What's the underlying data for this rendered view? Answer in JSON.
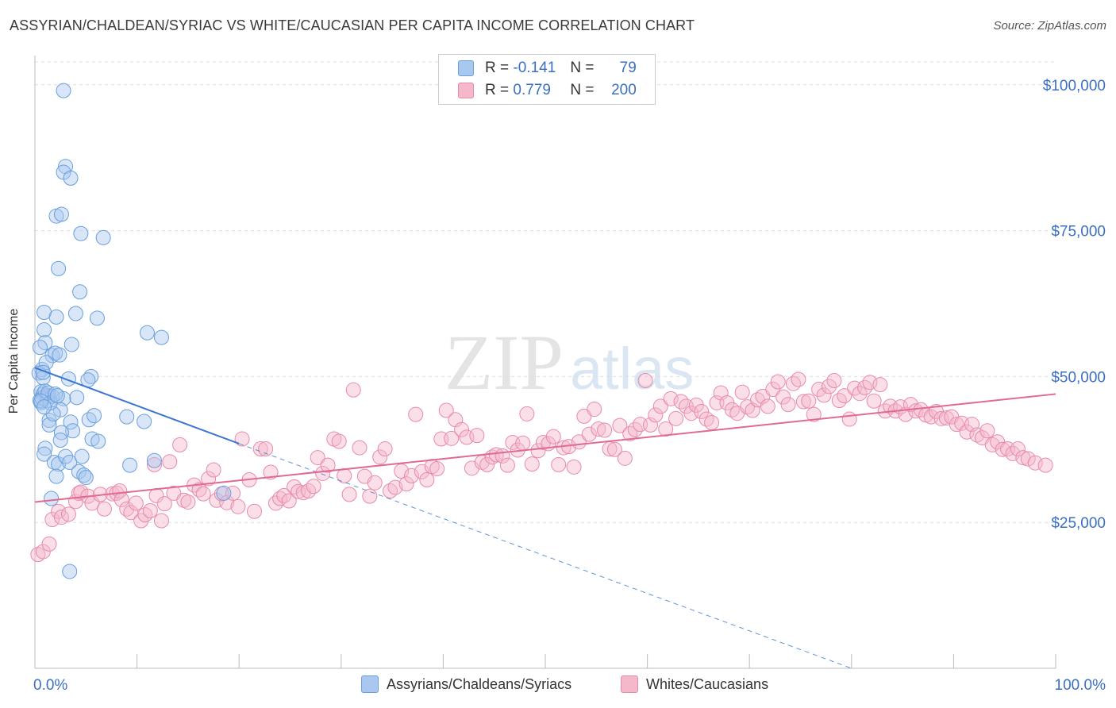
{
  "title": "ASSYRIAN/CHALDEAN/SYRIAC VS WHITE/CAUCASIAN PER CAPITA INCOME CORRELATION CHART",
  "source": "Source: ZipAtlas.com",
  "watermark": {
    "zip": "ZIP",
    "atlas": "atlas"
  },
  "legend": {
    "r_label": "R =",
    "n_label": "N =",
    "series1": {
      "r": "-0.141",
      "n": "79"
    },
    "series2": {
      "r": "0.779",
      "n": "200"
    }
  },
  "colors": {
    "blue_fill": "#a8c8f0",
    "blue_stroke": "#6a9fdc",
    "blue_line": "#3a76d0",
    "pink_fill": "#f5b8cb",
    "pink_stroke": "#e88aa8",
    "pink_line": "#e06a94",
    "grid": "#dddddd",
    "axis_text": "#3a6fc4"
  },
  "chart_data": {
    "type": "scatter",
    "title": "ASSYRIAN/CHALDEAN/SYRIAC VS WHITE/CAUCASIAN PER CAPITA INCOME CORRELATION CHART",
    "xlabel": "",
    "ylabel": "Per Capita Income",
    "xlim": [
      0,
      100
    ],
    "ylim": [
      0,
      105000
    ],
    "x_tick_labels": [
      "0.0%",
      "100.0%"
    ],
    "y_ticks": [
      25000,
      50000,
      75000,
      100000
    ],
    "y_tick_labels": [
      "$25,000",
      "$50,000",
      "$75,000",
      "$100,000"
    ],
    "series": [
      {
        "name": "Assyrians/Chaldeans/Syriacs",
        "trend": {
          "x": [
            0,
            20
          ],
          "y": [
            51500,
            38500
          ],
          "dashed_to": [
            80,
            0
          ]
        },
        "points": [
          [
            2.8,
            99000
          ],
          [
            3.0,
            86000
          ],
          [
            2.8,
            85000
          ],
          [
            3.5,
            84000
          ],
          [
            2.1,
            77500
          ],
          [
            2.6,
            77800
          ],
          [
            4.5,
            74500
          ],
          [
            6.7,
            73800
          ],
          [
            2.3,
            68500
          ],
          [
            4.4,
            64500
          ],
          [
            0.9,
            61000
          ],
          [
            4.0,
            60800
          ],
          [
            2.1,
            60200
          ],
          [
            6.1,
            60000
          ],
          [
            0.9,
            58000
          ],
          [
            1.0,
            55800
          ],
          [
            12.4,
            56700
          ],
          [
            11.0,
            57500
          ],
          [
            3.6,
            55500
          ],
          [
            0.5,
            55000
          ],
          [
            1.7,
            53600
          ],
          [
            2.0,
            54000
          ],
          [
            2.4,
            53700
          ],
          [
            0.7,
            51200
          ],
          [
            0.4,
            50600
          ],
          [
            0.8,
            49800
          ],
          [
            3.3,
            49600
          ],
          [
            5.5,
            50000
          ],
          [
            5.2,
            49400
          ],
          [
            0.6,
            47400
          ],
          [
            0.8,
            47000
          ],
          [
            1.2,
            46800
          ],
          [
            1.3,
            46600
          ],
          [
            1.7,
            46600
          ],
          [
            4.1,
            46400
          ],
          [
            2.8,
            46200
          ],
          [
            0.5,
            45900
          ],
          [
            0.6,
            45500
          ],
          [
            1.2,
            45900
          ],
          [
            2.5,
            44300
          ],
          [
            1.4,
            42500
          ],
          [
            1.4,
            41700
          ],
          [
            3.5,
            42200
          ],
          [
            5.3,
            42600
          ],
          [
            5.8,
            43300
          ],
          [
            9.0,
            43100
          ],
          [
            10.7,
            42300
          ],
          [
            5.6,
            39300
          ],
          [
            3.7,
            40700
          ],
          [
            2.6,
            40400
          ],
          [
            6.2,
            38900
          ],
          [
            2.5,
            39100
          ],
          [
            1.0,
            37700
          ],
          [
            0.9,
            36700
          ],
          [
            1.9,
            35300
          ],
          [
            2.3,
            35000
          ],
          [
            3.0,
            36300
          ],
          [
            3.4,
            35300
          ],
          [
            4.6,
            36300
          ],
          [
            9.3,
            34800
          ],
          [
            11.7,
            35600
          ],
          [
            4.3,
            33700
          ],
          [
            4.8,
            33100
          ],
          [
            2.1,
            32900
          ],
          [
            5.0,
            32700
          ],
          [
            1.6,
            29100
          ],
          [
            18.5,
            30000
          ],
          [
            3.4,
            16600
          ],
          [
            1.8,
            43600
          ],
          [
            0.7,
            46300
          ],
          [
            1.0,
            47500
          ],
          [
            1.3,
            47200
          ],
          [
            1.5,
            45500
          ],
          [
            2.0,
            47000
          ],
          [
            2.2,
            46700
          ],
          [
            0.6,
            45800
          ],
          [
            0.9,
            44800
          ],
          [
            1.1,
            52400
          ],
          [
            0.8,
            50700
          ]
        ]
      },
      {
        "name": "Whites/Caucasians",
        "trend": {
          "x": [
            0,
            100
          ],
          "y": [
            28500,
            47000
          ]
        },
        "points": [
          [
            0.3,
            19500
          ],
          [
            0.8,
            20000
          ],
          [
            1.4,
            21300
          ],
          [
            1.7,
            25500
          ],
          [
            2.3,
            26900
          ],
          [
            2.6,
            25900
          ],
          [
            3.3,
            26400
          ],
          [
            4.0,
            28600
          ],
          [
            4.3,
            30000
          ],
          [
            4.5,
            30200
          ],
          [
            5.2,
            29500
          ],
          [
            5.6,
            28300
          ],
          [
            6.4,
            29800
          ],
          [
            6.8,
            27300
          ],
          [
            7.6,
            29900
          ],
          [
            8.0,
            30000
          ],
          [
            8.3,
            30400
          ],
          [
            8.5,
            28900
          ],
          [
            9.0,
            27300
          ],
          [
            9.4,
            26700
          ],
          [
            9.9,
            28300
          ],
          [
            10.4,
            25300
          ],
          [
            10.8,
            26300
          ],
          [
            11.3,
            27000
          ],
          [
            11.7,
            34900
          ],
          [
            11.9,
            29600
          ],
          [
            12.4,
            25300
          ],
          [
            12.7,
            28200
          ],
          [
            13.2,
            35400
          ],
          [
            13.6,
            30000
          ],
          [
            14.2,
            38300
          ],
          [
            14.6,
            28800
          ],
          [
            15.0,
            28500
          ],
          [
            15.6,
            31400
          ],
          [
            16.1,
            30600
          ],
          [
            16.5,
            29900
          ],
          [
            17.0,
            32500
          ],
          [
            17.5,
            34000
          ],
          [
            17.8,
            28800
          ],
          [
            18.3,
            29900
          ],
          [
            18.8,
            28400
          ],
          [
            19.4,
            30000
          ],
          [
            19.9,
            27700
          ],
          [
            20.3,
            39300
          ],
          [
            21.0,
            32300
          ],
          [
            21.5,
            26900
          ],
          [
            22.1,
            37600
          ],
          [
            22.6,
            37600
          ],
          [
            23.1,
            33600
          ],
          [
            23.6,
            28300
          ],
          [
            24.0,
            29100
          ],
          [
            24.4,
            29600
          ],
          [
            24.9,
            28700
          ],
          [
            25.4,
            31100
          ],
          [
            25.8,
            30300
          ],
          [
            26.3,
            30100
          ],
          [
            26.8,
            30400
          ],
          [
            27.3,
            31200
          ],
          [
            27.7,
            36100
          ],
          [
            28.2,
            33400
          ],
          [
            28.7,
            34800
          ],
          [
            29.3,
            39300
          ],
          [
            29.8,
            38900
          ],
          [
            30.3,
            33000
          ],
          [
            30.8,
            29800
          ],
          [
            31.2,
            47700
          ],
          [
            31.8,
            37800
          ],
          [
            32.3,
            32900
          ],
          [
            32.8,
            29500
          ],
          [
            33.3,
            31800
          ],
          [
            33.8,
            36200
          ],
          [
            34.3,
            37600
          ],
          [
            34.8,
            30400
          ],
          [
            35.3,
            31000
          ],
          [
            35.9,
            33800
          ],
          [
            36.4,
            31600
          ],
          [
            36.9,
            33000
          ],
          [
            37.3,
            43500
          ],
          [
            37.9,
            33700
          ],
          [
            38.4,
            32300
          ],
          [
            38.9,
            34600
          ],
          [
            39.4,
            34200
          ],
          [
            39.8,
            39300
          ],
          [
            40.3,
            44200
          ],
          [
            40.8,
            39400
          ],
          [
            41.2,
            42600
          ],
          [
            41.8,
            40900
          ],
          [
            42.3,
            39600
          ],
          [
            42.8,
            34300
          ],
          [
            43.3,
            39900
          ],
          [
            43.8,
            35300
          ],
          [
            44.3,
            34900
          ],
          [
            44.8,
            36200
          ],
          [
            45.2,
            36600
          ],
          [
            45.8,
            36400
          ],
          [
            46.3,
            34800
          ],
          [
            46.8,
            38700
          ],
          [
            47.3,
            37400
          ],
          [
            47.8,
            38600
          ],
          [
            48.2,
            43600
          ],
          [
            48.7,
            35000
          ],
          [
            49.3,
            37300
          ],
          [
            49.8,
            38700
          ],
          [
            50.3,
            38500
          ],
          [
            50.8,
            39700
          ],
          [
            51.3,
            34900
          ],
          [
            51.8,
            37800
          ],
          [
            52.3,
            38000
          ],
          [
            52.8,
            34500
          ],
          [
            53.3,
            38800
          ],
          [
            53.8,
            43200
          ],
          [
            54.3,
            40100
          ],
          [
            54.8,
            44400
          ],
          [
            55.2,
            41000
          ],
          [
            55.8,
            40800
          ],
          [
            56.3,
            37600
          ],
          [
            56.8,
            37500
          ],
          [
            57.3,
            41600
          ],
          [
            57.8,
            36000
          ],
          [
            58.3,
            40200
          ],
          [
            58.8,
            40900
          ],
          [
            59.3,
            41800
          ],
          [
            59.8,
            49300
          ],
          [
            60.3,
            41700
          ],
          [
            60.8,
            43400
          ],
          [
            61.3,
            44900
          ],
          [
            61.8,
            41000
          ],
          [
            62.3,
            46200
          ],
          [
            62.8,
            42800
          ],
          [
            63.3,
            45700
          ],
          [
            63.8,
            44900
          ],
          [
            64.3,
            43700
          ],
          [
            64.8,
            45100
          ],
          [
            65.3,
            44000
          ],
          [
            65.8,
            42700
          ],
          [
            66.3,
            42100
          ],
          [
            66.8,
            45500
          ],
          [
            67.2,
            47200
          ],
          [
            67.8,
            45500
          ],
          [
            68.3,
            44300
          ],
          [
            68.8,
            43700
          ],
          [
            69.3,
            47300
          ],
          [
            69.8,
            44800
          ],
          [
            70.3,
            44200
          ],
          [
            70.8,
            46000
          ],
          [
            71.3,
            46600
          ],
          [
            71.8,
            44900
          ],
          [
            72.3,
            47800
          ],
          [
            72.8,
            49100
          ],
          [
            73.3,
            46500
          ],
          [
            73.8,
            45200
          ],
          [
            74.3,
            48800
          ],
          [
            74.8,
            49500
          ],
          [
            75.3,
            45700
          ],
          [
            75.8,
            45800
          ],
          [
            76.3,
            43500
          ],
          [
            76.8,
            47800
          ],
          [
            77.3,
            46800
          ],
          [
            77.8,
            48300
          ],
          [
            78.3,
            49300
          ],
          [
            78.8,
            45900
          ],
          [
            79.3,
            46700
          ],
          [
            79.8,
            42700
          ],
          [
            80.3,
            48000
          ],
          [
            80.8,
            47100
          ],
          [
            81.3,
            48100
          ],
          [
            81.8,
            49000
          ],
          [
            82.2,
            45800
          ],
          [
            82.8,
            48600
          ],
          [
            83.3,
            44100
          ],
          [
            83.8,
            44900
          ],
          [
            84.3,
            44100
          ],
          [
            84.8,
            44800
          ],
          [
            85.3,
            43500
          ],
          [
            85.8,
            45200
          ],
          [
            86.3,
            44100
          ],
          [
            86.8,
            44300
          ],
          [
            87.3,
            43400
          ],
          [
            87.8,
            43100
          ],
          [
            88.3,
            44000
          ],
          [
            88.8,
            42800
          ],
          [
            89.3,
            42900
          ],
          [
            89.8,
            43100
          ],
          [
            90.3,
            41800
          ],
          [
            90.8,
            42000
          ],
          [
            91.3,
            40500
          ],
          [
            91.8,
            41800
          ],
          [
            92.3,
            40000
          ],
          [
            92.8,
            39500
          ],
          [
            93.3,
            40700
          ],
          [
            93.8,
            38300
          ],
          [
            94.3,
            38800
          ],
          [
            94.8,
            37500
          ],
          [
            95.3,
            37600
          ],
          [
            95.8,
            36800
          ],
          [
            96.3,
            37600
          ],
          [
            96.8,
            36100
          ],
          [
            97.3,
            35900
          ],
          [
            98.0,
            35200
          ],
          [
            99.0,
            34800
          ]
        ]
      }
    ]
  },
  "bottom_legend": {
    "item1": "Assyrians/Chaldeans/Syriacs",
    "item2": "Whites/Caucasians"
  }
}
